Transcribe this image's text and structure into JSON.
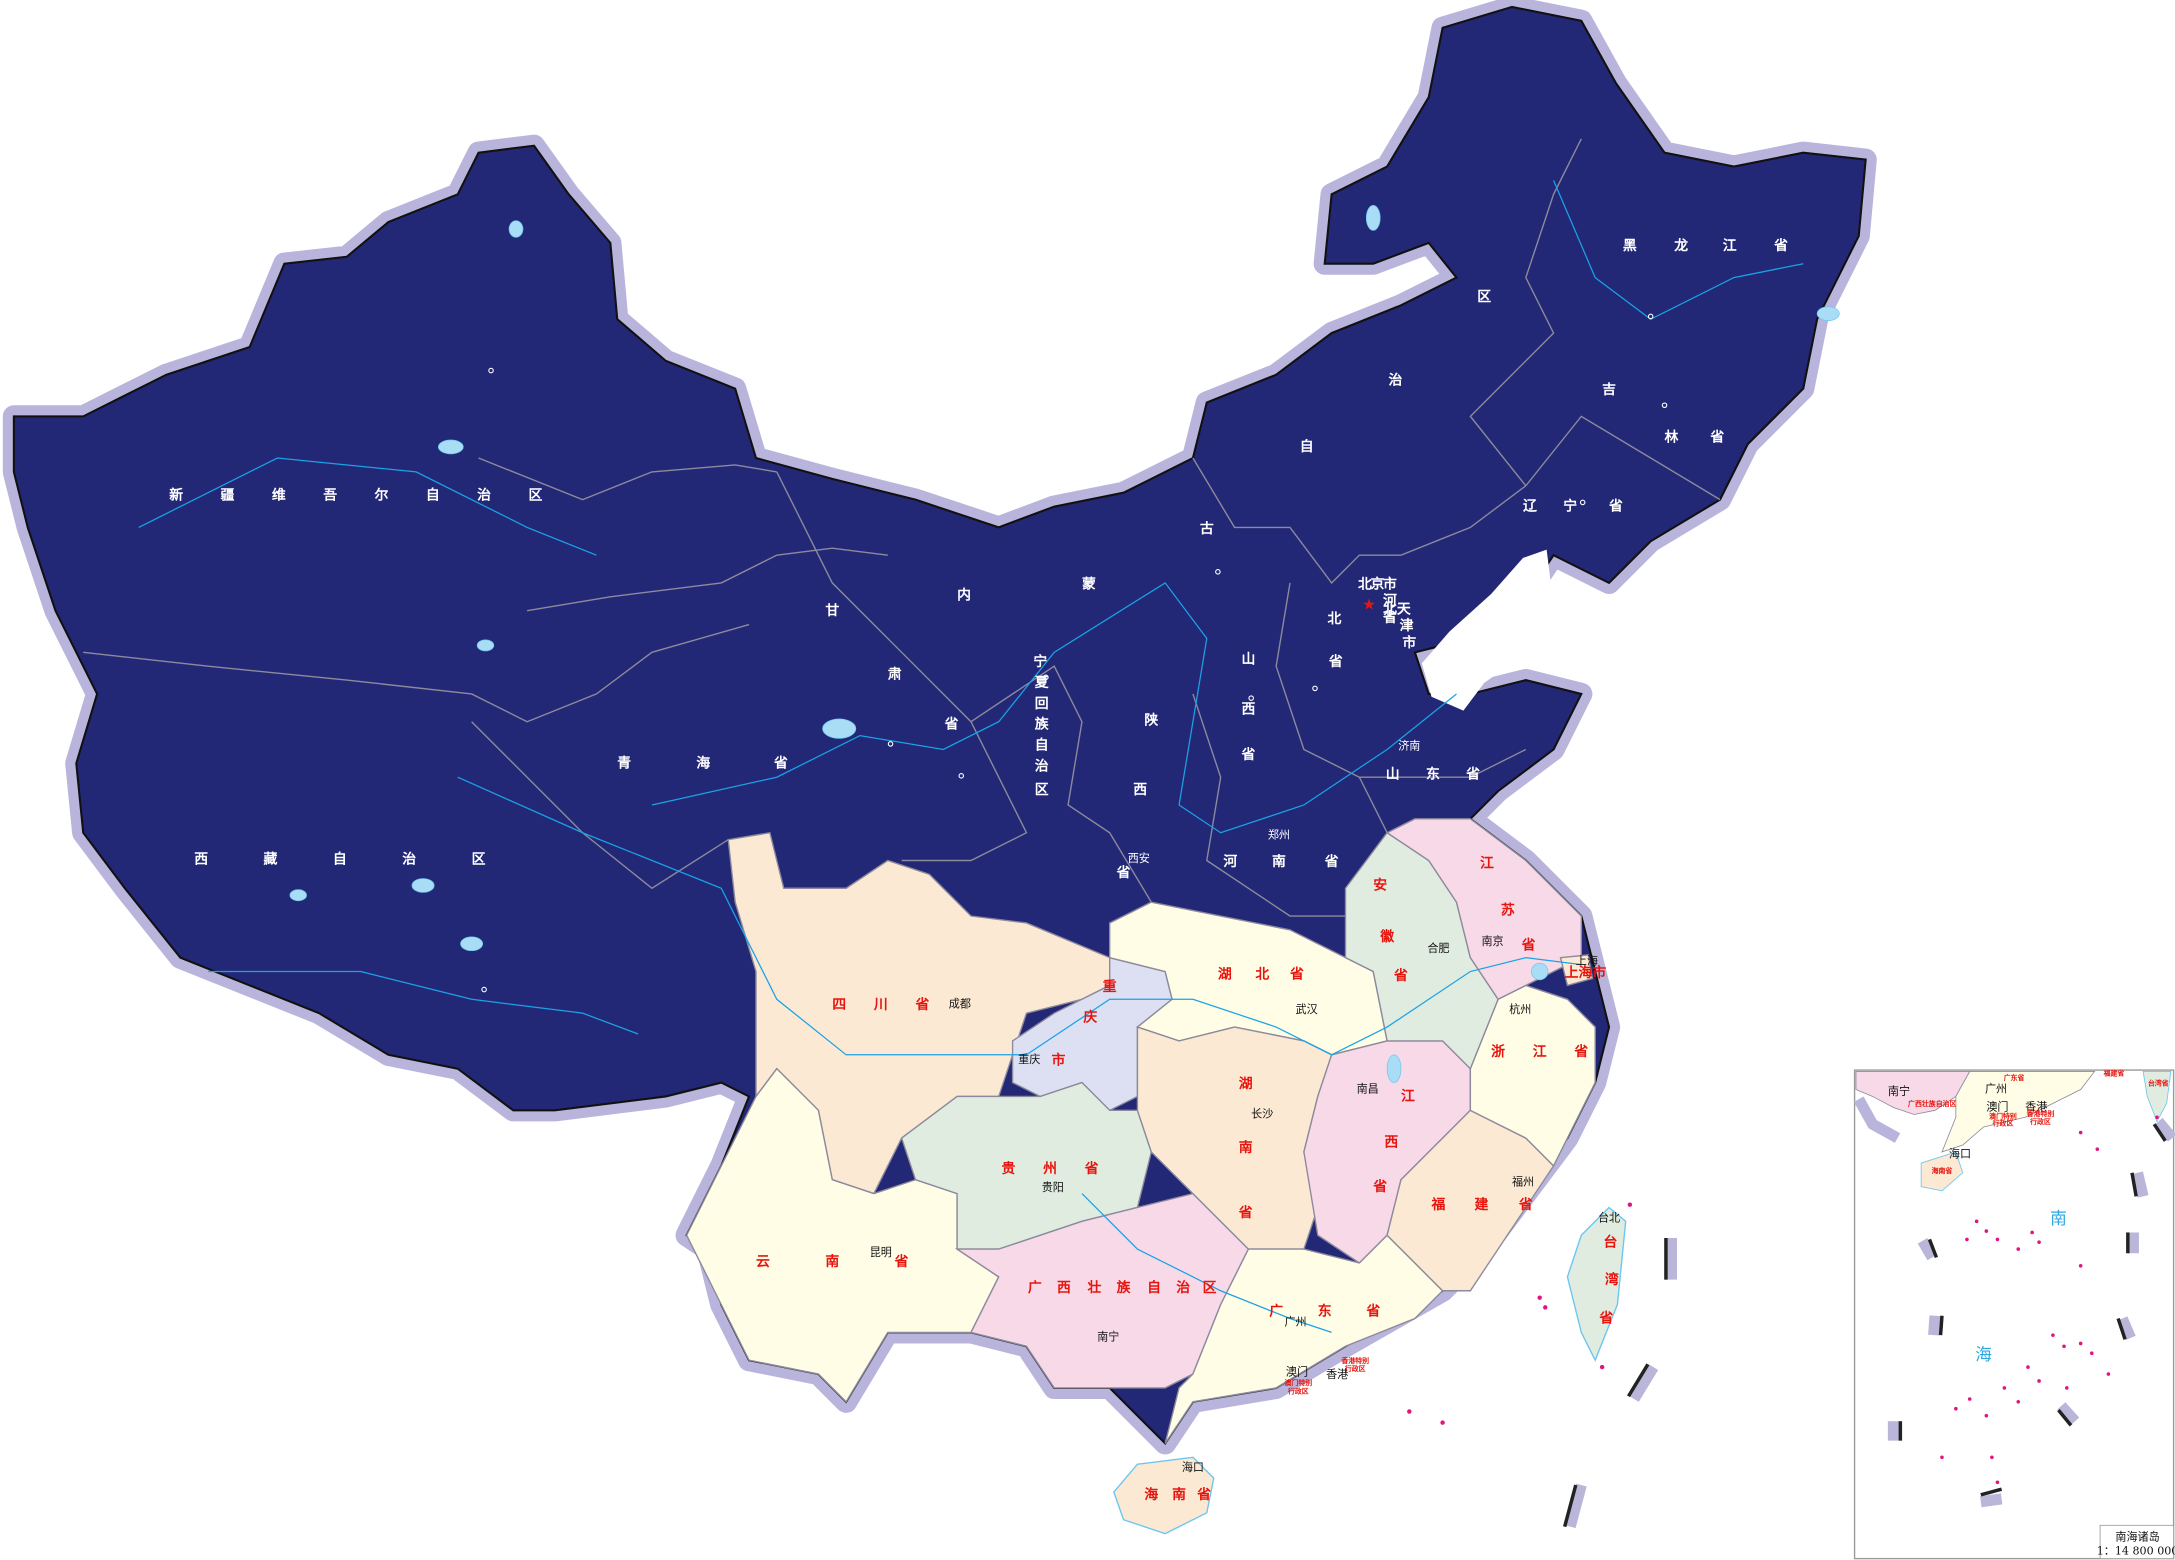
{
  "colors": {
    "northern_fill": "#232876",
    "halo": "#b8b4dc",
    "peach": "#fbe9d3",
    "cream": "#fffde6",
    "pink": "#f7d9e8",
    "green": "#e0ece0",
    "lavender": "#dde0f2",
    "province_label_south": "#e8150f",
    "province_label_north": "#ffffff",
    "river": "#1aa3e6",
    "island": "#e0167f"
  },
  "capital_marker": "red-star-icon",
  "provinces": {
    "xinjiang": "新疆维吾尔自治区",
    "xizang": "西藏自治区",
    "qinghai": "青海省",
    "gansu": "甘肃省",
    "neimenggu": "内蒙古自治区",
    "heilongjiang": "黑龙江省",
    "jilin": "吉林省",
    "liaoning": "辽宁省",
    "beijing": "北京市",
    "tianjin": "天津市",
    "hebei_small": "河北省",
    "hebei_main": "北省",
    "shanxi": "山西省",
    "shaanxi": "陕西省",
    "ningxia": "宁夏回族自治区",
    "shandong": "山东省",
    "henan": "河南省",
    "sichuan": "四川省",
    "chongqing": "重庆市",
    "guizhou": "贵州省",
    "yunnan": "云南省",
    "guangxi": "广西壮族自治区",
    "hubei": "湖北省",
    "hunan": "湖南省",
    "jiangxi": "江西省",
    "fujian": "福建省",
    "zhejiang": "浙江省",
    "anhui": "安徽省",
    "jiangsu": "江苏省",
    "shanghai": "上海市",
    "taiwan": "台湾省",
    "guangdong": "广东省",
    "hainan": "海南省",
    "hongkong_1": "香港特别",
    "hongkong_2": "行政区",
    "macao_1": "澳门特别",
    "macao_2": "行政区"
  },
  "cities": {
    "jinan": "济南",
    "zhengzhou": "郑州",
    "xian": "西安",
    "chengdu": "成都",
    "chongqing": "重庆",
    "guiyang": "贵阳",
    "kunming": "昆明",
    "nanning": "南宁",
    "wuhan": "武汉",
    "changsha": "长沙",
    "nanchang": "南昌",
    "fuzhou": "福州",
    "hangzhou": "杭州",
    "hefei": "合肥",
    "nanjing": "南京",
    "shanghai": "上海",
    "taipei": "台北",
    "guangzhou": "广州",
    "macao": "澳门",
    "hongkong": "香港",
    "haikou": "海口"
  },
  "inset": {
    "nanning": "南宁",
    "guangxi": "广西壮族自治区",
    "guangdong": "广东省",
    "guangzhou": "广州",
    "macao": "澳门",
    "hongkong": "香港",
    "macao_sar_1": "澳门特别",
    "macao_sar_2": "行政区",
    "hongkong_sar_1": "香港特别",
    "hongkong_sar_2": "行政区",
    "haikou": "海口",
    "hainan": "海南省",
    "fujian": "福建省",
    "taiwan": "台湾省",
    "sea_char_1": "南",
    "sea_char_2": "海",
    "title": "南海诸岛",
    "scale": "1：14 800 000"
  }
}
